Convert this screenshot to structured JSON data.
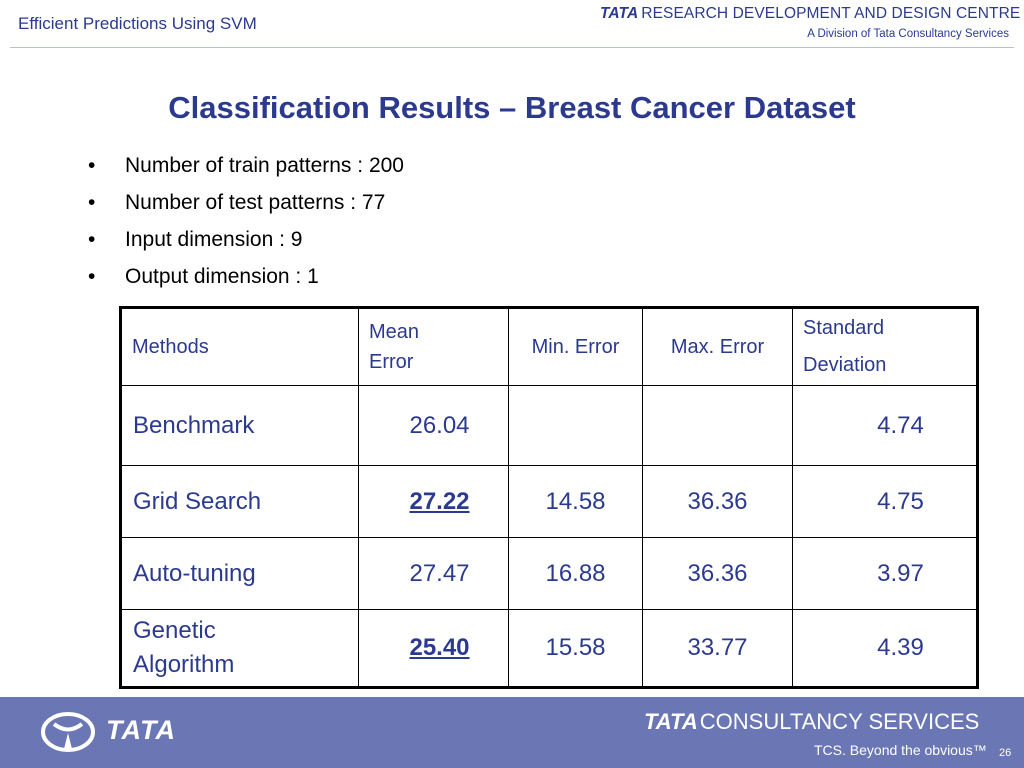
{
  "header": {
    "title": "Efficient Predictions Using SVM",
    "org_brand": "TATA",
    "org_name": "RESEARCH DEVELOPMENT AND DESIGN CENTRE",
    "org_subtitle": "A Division of Tata Consultancy Services"
  },
  "slide": {
    "title": "Classification Results – Breast Cancer Dataset",
    "bullet_glyph": "•",
    "bullets": [
      "Number of train patterns : 200",
      "Number of test patterns : 77",
      "Input dimension : 9",
      "Output dimension : 1"
    ]
  },
  "table": {
    "headers": {
      "methods": "Methods",
      "mean_line1": "Mean",
      "mean_line2": "Error",
      "min": "Min. Error",
      "max": "Max. Error",
      "std_line1": "Standard",
      "std_line2": "Deviation"
    },
    "rows": [
      {
        "method": "Benchmark",
        "mean": "26.04",
        "min": "",
        "max": "",
        "std": "4.74",
        "mean_highlight": false
      },
      {
        "method": "Grid Search",
        "mean": "27.22",
        "min": "14.58",
        "max": "36.36",
        "std": "4.75",
        "mean_highlight": true
      },
      {
        "method": "Auto-tuning",
        "mean": "27.47",
        "min": "16.88",
        "max": "36.36",
        "std": "3.97",
        "mean_highlight": false
      },
      {
        "method_line1": "Genetic",
        "method_line2": "Algorithm",
        "mean": "25.40",
        "min": "15.58",
        "max": "33.77",
        "std": "4.39",
        "mean_highlight": true
      }
    ]
  },
  "footer": {
    "tata_word": "TATA",
    "tcs_brand": "TATA",
    "tcs_name": "CONSULTANCY SERVICES",
    "tagline": "TCS. Beyond the obvious™",
    "page_number": "26"
  },
  "colors": {
    "accent": "#2b3a8f",
    "footer_bg": "#6b77b5",
    "table_text": "#2b3a8f"
  }
}
